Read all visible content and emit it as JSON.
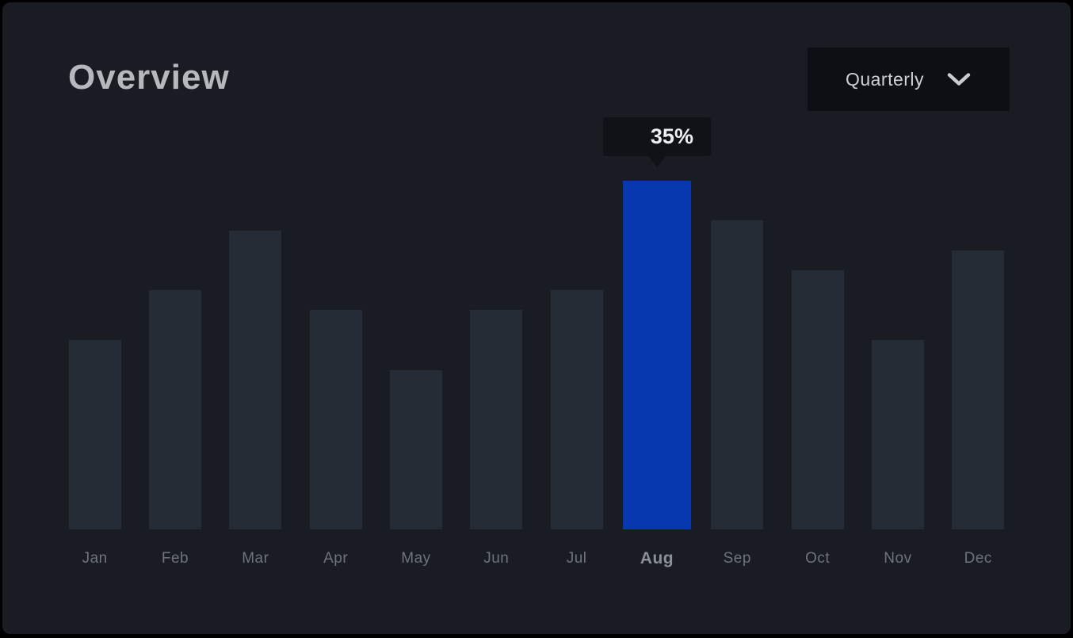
{
  "page": {
    "title": "Overview"
  },
  "dropdown": {
    "label": "Quarterly",
    "icon": "chevron-down-icon"
  },
  "tooltip": {
    "value": "35%"
  },
  "colors": {
    "frame": "#000000",
    "background": "#191c22",
    "bar": "#262c36",
    "bar_highlight": "#0838b0",
    "tooltip_bg": "#101218",
    "tooltip_text": "#eceef0",
    "dropdown_bg": "#0d0f14",
    "dropdown_text": "#ced0d5",
    "title_text": "#b5b8bd",
    "label_text": "#6e737c",
    "label_highlight_text": "#8b9099"
  },
  "chart_data": {
    "type": "bar",
    "title": "Overview",
    "categories": [
      "Jan",
      "Feb",
      "Mar",
      "Apr",
      "May",
      "Jun",
      "Jul",
      "Aug",
      "Sep",
      "Oct",
      "Nov",
      "Dec"
    ],
    "values": [
      19,
      24,
      30,
      22,
      16,
      22,
      24,
      35,
      31,
      26,
      19,
      28
    ],
    "unit": "%",
    "highlighted_category": "Aug",
    "highlighted_value_label": "35%",
    "xlabel": "",
    "ylabel": "",
    "ylim": [
      0,
      40
    ],
    "grid": false,
    "legend": false,
    "legend_position": "none"
  }
}
